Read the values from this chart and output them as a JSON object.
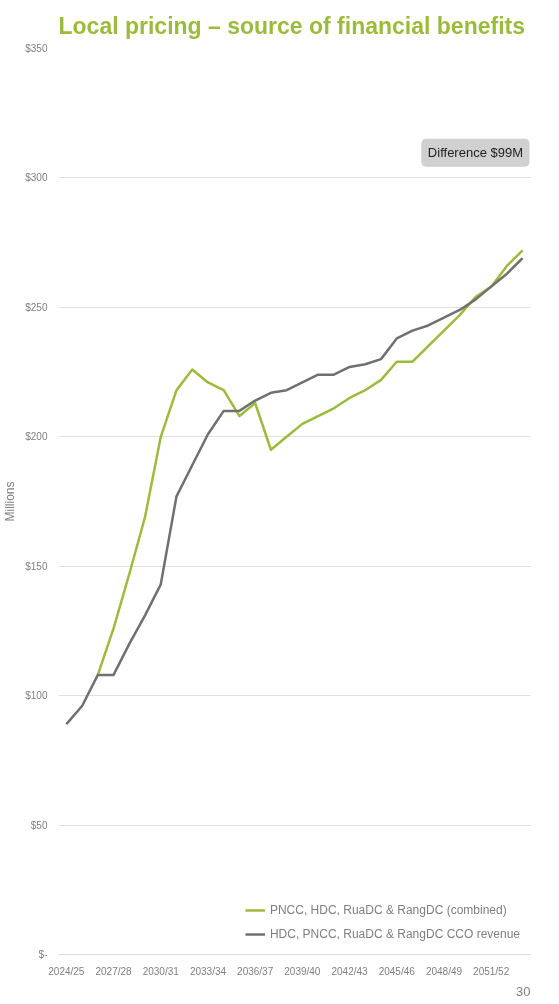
{
  "chart_data": {
    "type": "line",
    "title": "Local pricing – source of financial benefits",
    "ylabel": "Millions",
    "categories": [
      "2024/25",
      null,
      null,
      "2027/28",
      null,
      null,
      "2030/31",
      null,
      null,
      "2033/34",
      null,
      null,
      "2036/37",
      null,
      null,
      "2039/40",
      null,
      null,
      "2042/43",
      null,
      null,
      "2045/46",
      null,
      null,
      "2048/49",
      null,
      null,
      "2051/52",
      null,
      null
    ],
    "series": [
      {
        "name": "PNCC, HDC, RuaDC & RangDC (combined)",
        "color": "#9bbb3a",
        "values": [
          null,
          null,
          108,
          126,
          147,
          169,
          200,
          218,
          226,
          221,
          218,
          208,
          213,
          195,
          200,
          205,
          208,
          211,
          215,
          218,
          222,
          229,
          229,
          235,
          241,
          247,
          254,
          258,
          266,
          272
        ]
      },
      {
        "name": "HDC, PNCC, RuaDC & RangDC CCO revenue",
        "color": "#707070",
        "values": [
          89,
          96,
          108,
          108,
          120,
          131,
          143,
          177,
          189,
          201,
          210,
          210,
          214,
          217,
          218,
          221,
          224,
          224,
          227,
          228,
          230,
          238,
          241,
          243,
          246,
          249,
          253,
          258,
          263,
          269
        ]
      }
    ],
    "ylim": [
      0,
      350
    ],
    "yticks": [
      {
        "value": 0,
        "label": "$-"
      },
      {
        "value": 50,
        "label": "$50"
      },
      {
        "value": 100,
        "label": "$100"
      },
      {
        "value": 150,
        "label": "$150"
      },
      {
        "value": 200,
        "label": "$200"
      },
      {
        "value": 250,
        "label": "$250"
      },
      {
        "value": 300,
        "label": "$300"
      },
      {
        "value": 350,
        "label": "$350"
      }
    ],
    "grid": "y",
    "legend": "bottom",
    "annotations": [
      "Difference $99M",
      "30"
    ]
  }
}
